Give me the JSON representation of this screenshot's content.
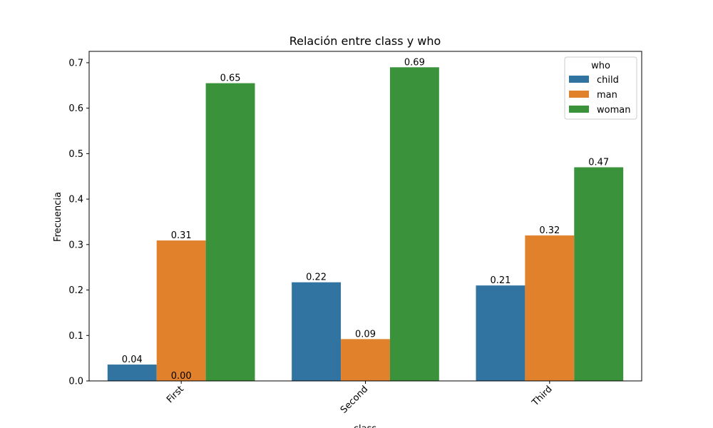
{
  "chart_data": {
    "type": "bar",
    "title": "Relación entre class y who",
    "xlabel": "class",
    "ylabel": "Frecuencia",
    "categories": [
      "First",
      "Second",
      "Third"
    ],
    "ylim": [
      0,
      0.725
    ],
    "yticks": [
      "0.0",
      "0.1",
      "0.2",
      "0.3",
      "0.4",
      "0.5",
      "0.6",
      "0.7"
    ],
    "legend": {
      "title": "who",
      "position": "top-right"
    },
    "grid": false,
    "series": [
      {
        "name": "child",
        "color": "#3274a1",
        "values": [
          0.036,
          0.217,
          0.21
        ],
        "labels": [
          "0.04",
          "0.22",
          "0.21"
        ]
      },
      {
        "name": "man",
        "color": "#e1812c",
        "values": [
          0.309,
          0.092,
          0.32
        ],
        "labels": [
          "0.31",
          "0.09",
          "0.32"
        ]
      },
      {
        "name": "woman",
        "color": "#3a923a",
        "values": [
          0.655,
          0.69,
          0.47
        ],
        "labels": [
          "0.65",
          "0.69",
          "0.47"
        ]
      }
    ],
    "extra_labels": [
      {
        "category": "First",
        "slot": 1,
        "text": "0.00"
      }
    ]
  }
}
